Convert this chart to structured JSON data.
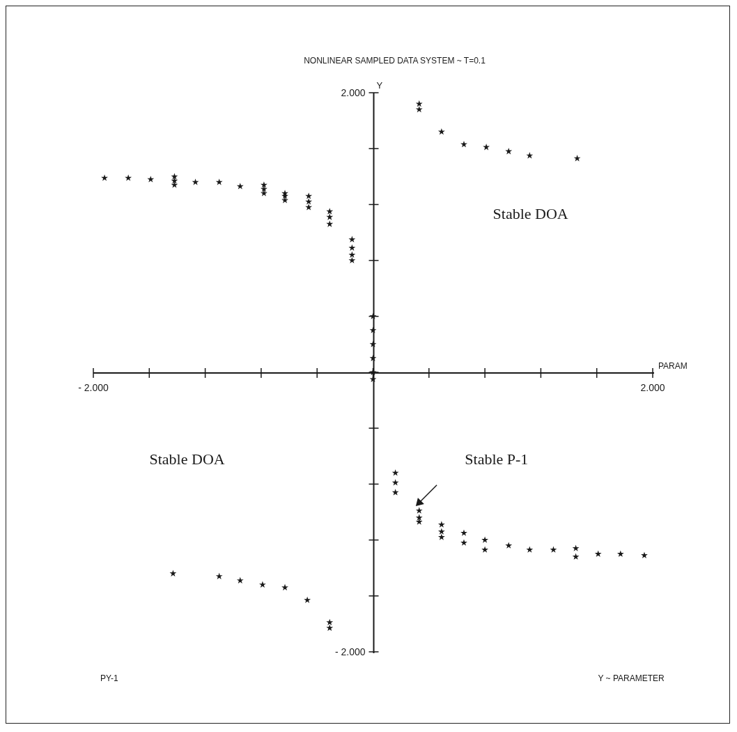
{
  "chart_data": {
    "type": "scatter",
    "title": "NONLINEAR SAMPLED DATA SYSTEM ~ T=0.1",
    "xlabel": "PARAM",
    "ylabel": "Y",
    "x": [
      -1.92,
      -1.75,
      -1.59,
      -1.42,
      -1.42,
      -1.42,
      -1.27,
      -1.1,
      -0.95,
      -0.78,
      -0.78,
      -0.78,
      -0.63,
      -0.63,
      -0.63,
      -0.46,
      -0.46,
      -0.46,
      -0.31,
      -0.31,
      -0.31,
      -0.15,
      -0.15,
      -0.15,
      -0.15,
      0.33,
      0.33,
      0.49,
      0.65,
      0.81,
      0.97,
      1.12,
      1.46,
      0,
      0,
      0,
      0,
      0,
      0,
      0.16,
      0.16,
      0.16,
      0.33,
      0.33,
      0.33,
      0.49,
      0.49,
      0.49,
      0.65,
      0.65,
      0.8,
      0.8,
      0.97,
      1.12,
      1.29,
      1.45,
      1.45,
      1.61,
      1.77,
      1.94,
      -1.43,
      -1.1,
      -0.95,
      -0.79,
      -0.63,
      -0.47,
      -0.31,
      -0.31
    ],
    "values": [
      1.39,
      1.39,
      1.38,
      1.4,
      1.37,
      1.34,
      1.36,
      1.36,
      1.33,
      1.34,
      1.31,
      1.28,
      1.28,
      1.26,
      1.23,
      1.26,
      1.22,
      1.18,
      1.15,
      1.11,
      1.06,
      0.95,
      0.89,
      0.84,
      0.8,
      1.92,
      1.88,
      1.72,
      1.63,
      1.61,
      1.58,
      1.55,
      1.53,
      0.4,
      0.3,
      0.2,
      0.1,
      0.0,
      -0.05,
      -0.72,
      -0.79,
      -0.86,
      -0.99,
      -1.04,
      -1.07,
      -1.09,
      -1.14,
      -1.18,
      -1.15,
      -1.22,
      -1.2,
      -1.27,
      -1.24,
      -1.27,
      -1.27,
      -1.26,
      -1.32,
      -1.3,
      -1.3,
      -1.31,
      -1.44,
      -1.46,
      -1.49,
      -1.52,
      -1.54,
      -1.63,
      -1.79,
      -1.83
    ],
    "color": "#1a1a1a",
    "marker": "star",
    "xlim": [
      -2,
      2
    ],
    "xticks": [
      {
        "value": -2,
        "label": "- 2.000"
      },
      {
        "value": -1.6,
        "label": null
      },
      {
        "value": -1.2,
        "label": null
      },
      {
        "value": -0.8,
        "label": null
      },
      {
        "value": -0.4,
        "label": null
      },
      {
        "value": 0,
        "label": null
      },
      {
        "value": 0.4,
        "label": null
      },
      {
        "value": 0.8,
        "label": null
      },
      {
        "value": 1.2,
        "label": null
      },
      {
        "value": 1.6,
        "label": null
      },
      {
        "value": 2,
        "label": "2.000"
      }
    ],
    "ylim": [
      -2,
      2
    ],
    "yticks": [
      {
        "value": -2,
        "label": "- 2.000"
      },
      {
        "value": -1.6,
        "label": null
      },
      {
        "value": -1.2,
        "label": null
      },
      {
        "value": -0.8,
        "label": null
      },
      {
        "value": -0.4,
        "label": null
      },
      {
        "value": 0,
        "label": null
      },
      {
        "value": 0.4,
        "label": null
      },
      {
        "value": 0.8,
        "label": null
      },
      {
        "value": 1.2,
        "label": null
      },
      {
        "value": 1.6,
        "label": null
      },
      {
        "value": 2,
        "label": "2.000"
      }
    ],
    "annotations": [
      "Stable DOA",
      "Stable DOA",
      "Stable P-1",
      "PY-1",
      "Y ~ PARAMETER"
    ]
  }
}
